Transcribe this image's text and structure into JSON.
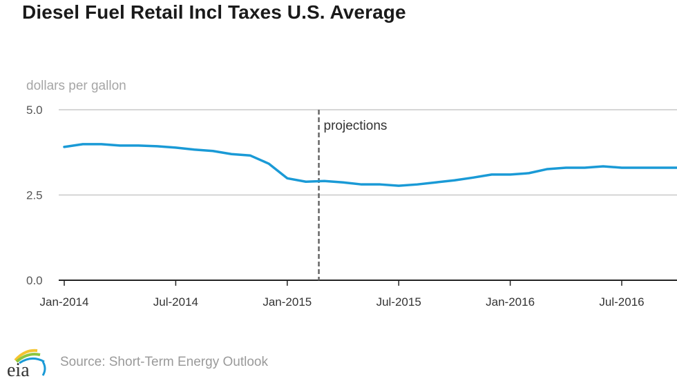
{
  "chart_data": {
    "type": "line",
    "title": "Diesel Fuel Retail Incl Taxes U.S. Average",
    "ylabel": "dollars per gallon",
    "xlabel": "",
    "ylim": [
      0,
      5
    ],
    "yticks": [
      {
        "value": 0,
        "label": "0.0"
      },
      {
        "value": 2.5,
        "label": "2.5"
      },
      {
        "value": 5,
        "label": "5.0"
      }
    ],
    "xticks": [
      {
        "index": 0,
        "label": "Jan-2014"
      },
      {
        "index": 6,
        "label": "Jul-2014"
      },
      {
        "index": 12,
        "label": "Jan-2015"
      },
      {
        "index": 18,
        "label": "Jul-2015"
      },
      {
        "index": 24,
        "label": "Jan-2016"
      },
      {
        "index": 30,
        "label": "Jul-2016"
      }
    ],
    "grid": true,
    "x": [
      "Jan-2014",
      "Feb-2014",
      "Mar-2014",
      "Apr-2014",
      "May-2014",
      "Jun-2014",
      "Jul-2014",
      "Aug-2014",
      "Sep-2014",
      "Oct-2014",
      "Nov-2014",
      "Dec-2014",
      "Jan-2015",
      "Feb-2015",
      "Mar-2015",
      "Apr-2015",
      "May-2015",
      "Jun-2015",
      "Jul-2015",
      "Aug-2015",
      "Sep-2015",
      "Oct-2015",
      "Nov-2015",
      "Dec-2015",
      "Jan-2016",
      "Feb-2016",
      "Mar-2016",
      "Apr-2016",
      "May-2016",
      "Jun-2016",
      "Jul-2016",
      "Aug-2016",
      "Sep-2016",
      "Oct-2016"
    ],
    "series": [
      {
        "name": "Diesel Fuel Retail Incl Taxes U.S. Average",
        "color": "#1a9ad6",
        "values": [
          3.91,
          3.99,
          3.99,
          3.95,
          3.95,
          3.93,
          3.89,
          3.83,
          3.79,
          3.7,
          3.66,
          3.42,
          2.99,
          2.89,
          2.91,
          2.87,
          2.81,
          2.81,
          2.77,
          2.81,
          2.87,
          2.93,
          3.01,
          3.1,
          3.1,
          3.14,
          3.26,
          3.3,
          3.3,
          3.34,
          3.3,
          3.3,
          3.3,
          3.3
        ]
      }
    ],
    "annotations": [
      {
        "type": "vertical-dashed-line",
        "x_index": 13.7,
        "label": "projections"
      }
    ],
    "legend": "none"
  },
  "footer": {
    "logo_text": "eia",
    "source": "Source: Short-Term Energy Outlook"
  }
}
